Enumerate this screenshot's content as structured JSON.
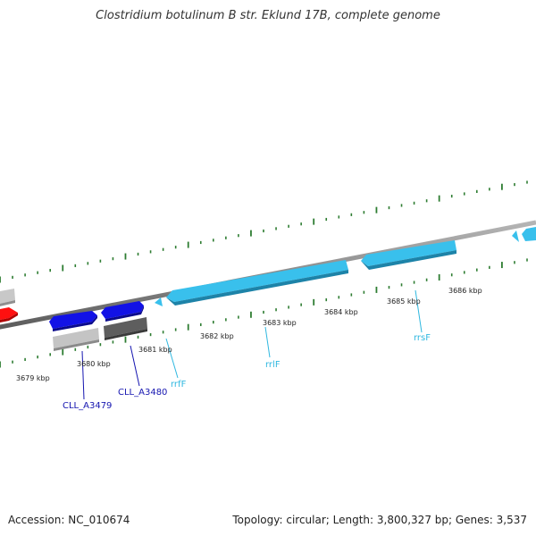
{
  "title": "Clostridium botulinum B str. Eklund 17B, complete genome",
  "footer": {
    "accession": "Accession: NC_010674",
    "summary": "Topology: circular; Length: 3,800,327 bp; Genes: 3,537"
  },
  "colors": {
    "tick": "#2e7d32",
    "backbone": "#7a7a7a",
    "rna_gene": "#39c0ec",
    "protein_gene": "#1010e0",
    "gene_label_protein": "#1515b0",
    "gene_label_rna": "#30b8e0",
    "highlight_red": "#ff1010",
    "feature_gray_light": "#bdbdbd",
    "feature_gray_dark": "#5a5a5a"
  },
  "map": {
    "tick_labels": [
      "3679 kbp",
      "3680 kbp",
      "3681 kbp",
      "3682 kbp",
      "3683 kbp",
      "3684 kbp",
      "3685 kbp",
      "3686 kbp"
    ],
    "gene_labels": [
      {
        "text": "CLL_A3479",
        "kind": "protein"
      },
      {
        "text": "CLL_A3480",
        "kind": "protein"
      },
      {
        "text": "rrfF",
        "kind": "rna"
      },
      {
        "text": "rrlF",
        "kind": "rna"
      },
      {
        "text": "rrsF",
        "kind": "rna"
      }
    ]
  }
}
